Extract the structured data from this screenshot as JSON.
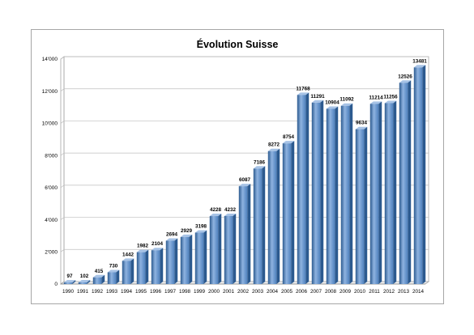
{
  "chart_data": {
    "type": "bar",
    "title": "Évolution Suisse",
    "xlabel": "",
    "ylabel": "",
    "categories": [
      "1990",
      "1991",
      "1992",
      "1993",
      "1994",
      "1995",
      "1996",
      "1997",
      "1998",
      "1999",
      "2000",
      "2001",
      "2002",
      "2003",
      "2004",
      "2005",
      "2006",
      "2007",
      "2008",
      "2009",
      "2010",
      "2011",
      "2012",
      "2013",
      "2014"
    ],
    "values": [
      97,
      102,
      415,
      730,
      1442,
      1982,
      2104,
      2694,
      2929,
      3198,
      4228,
      4232,
      6087,
      7186,
      8272,
      8754,
      11768,
      11291,
      10904,
      11092,
      9634,
      11214,
      11256,
      12526,
      13481
    ],
    "data_labels": [
      "97",
      "102",
      "415",
      "730",
      "1442",
      "1982",
      "2104",
      "2694",
      "2929",
      "3198",
      "4228",
      "4232",
      "6087",
      "7186",
      "8272",
      "8754",
      "11768",
      "11291",
      "10904",
      "11092",
      "9634",
      "11214",
      "11256",
      "12526",
      "13481"
    ],
    "ylim": [
      0,
      14000
    ],
    "yticks": [
      0,
      2000,
      4000,
      6000,
      8000,
      10000,
      12000,
      14000
    ],
    "ytick_labels": [
      "0",
      "2'000",
      "4'000",
      "6'000",
      "8'000",
      "10'000",
      "12'000",
      "14'000"
    ],
    "grid": true,
    "legend": "none",
    "colors": {
      "bar_front": "#4f81bd",
      "bar_highlight": "#8fb3e0",
      "bar_side": "#2c5a8f",
      "bar_top": "#a7c3e6"
    }
  }
}
